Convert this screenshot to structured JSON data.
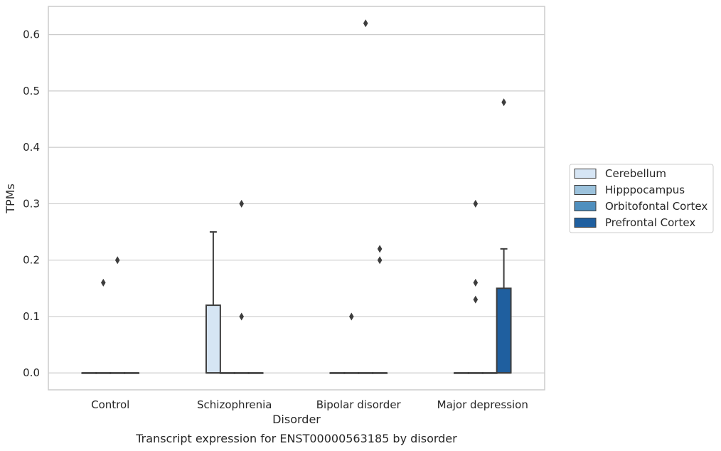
{
  "chart_data": {
    "type": "box",
    "title": "",
    "caption": "Transcript expression for ENST00000563185 by disorder",
    "xlabel": "Disorder",
    "ylabel": "TPMs",
    "ylim": [
      -0.03,
      0.65
    ],
    "yticks": [
      "0.0",
      "0.1",
      "0.2",
      "0.3",
      "0.4",
      "0.5",
      "0.6"
    ],
    "categories": [
      "Control",
      "Schizophrenia",
      "Bipolar disorder",
      "Major depression"
    ],
    "grid": "horizontal",
    "legend_position": "right",
    "series": [
      {
        "name": "Cerebellum",
        "color": "#d6e5f4",
        "boxes": [
          {
            "q1": 0,
            "median": 0,
            "q3": 0,
            "whisker_low": 0,
            "whisker_high": 0,
            "outliers": []
          },
          {
            "q1": 0,
            "median": 0,
            "q3": 0.12,
            "whisker_low": 0,
            "whisker_high": 0.25,
            "outliers": []
          },
          {
            "q1": 0,
            "median": 0,
            "q3": 0,
            "whisker_low": 0,
            "whisker_high": 0,
            "outliers": []
          },
          {
            "q1": 0,
            "median": 0,
            "q3": 0,
            "whisker_low": 0,
            "whisker_high": 0,
            "outliers": []
          }
        ]
      },
      {
        "name": "Hipppocampus",
        "color": "#9cc2dc",
        "boxes": [
          {
            "q1": 0,
            "median": 0,
            "q3": 0,
            "whisker_low": 0,
            "whisker_high": 0,
            "outliers": [
              0.16
            ]
          },
          {
            "q1": 0,
            "median": 0,
            "q3": 0,
            "whisker_low": 0,
            "whisker_high": 0,
            "outliers": []
          },
          {
            "q1": 0,
            "median": 0,
            "q3": 0,
            "whisker_low": 0,
            "whisker_high": 0,
            "outliers": [
              0.1
            ]
          },
          {
            "q1": 0,
            "median": 0,
            "q3": 0,
            "whisker_low": 0,
            "whisker_high": 0,
            "outliers": [
              0.3,
              0.16,
              0.13
            ]
          }
        ]
      },
      {
        "name": "Orbitofontal Cortex",
        "color": "#4f8fbe",
        "boxes": [
          {
            "q1": 0,
            "median": 0,
            "q3": 0,
            "whisker_low": 0,
            "whisker_high": 0,
            "outliers": [
              0.2
            ]
          },
          {
            "q1": 0,
            "median": 0,
            "q3": 0,
            "whisker_low": 0,
            "whisker_high": 0,
            "outliers": [
              0.3,
              0.1
            ]
          },
          {
            "q1": 0,
            "median": 0,
            "q3": 0,
            "whisker_low": 0,
            "whisker_high": 0,
            "outliers": [
              0.62
            ]
          },
          {
            "q1": 0,
            "median": 0,
            "q3": 0,
            "whisker_low": 0,
            "whisker_high": 0,
            "outliers": []
          }
        ]
      },
      {
        "name": "Prefrontal Cortex",
        "color": "#1f5f9f",
        "boxes": [
          {
            "q1": 0,
            "median": 0,
            "q3": 0,
            "whisker_low": 0,
            "whisker_high": 0,
            "outliers": []
          },
          {
            "q1": 0,
            "median": 0,
            "q3": 0,
            "whisker_low": 0,
            "whisker_high": 0,
            "outliers": []
          },
          {
            "q1": 0,
            "median": 0,
            "q3": 0,
            "whisker_low": 0,
            "whisker_high": 0,
            "outliers": [
              0.22,
              0.2
            ]
          },
          {
            "q1": 0,
            "median": 0,
            "q3": 0.15,
            "whisker_low": 0,
            "whisker_high": 0.22,
            "outliers": [
              0.48
            ]
          }
        ]
      }
    ]
  }
}
